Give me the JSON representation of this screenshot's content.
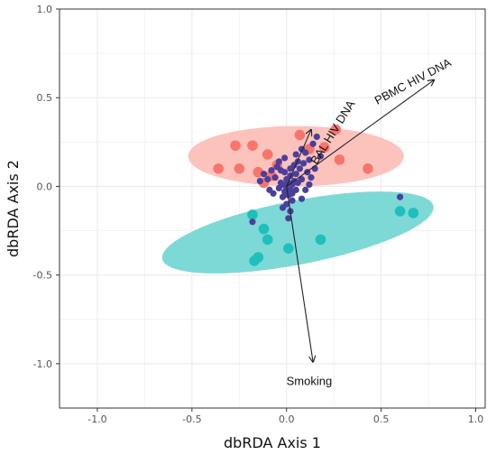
{
  "chart_data": {
    "type": "scatter",
    "xlabel": "dbRDA Axis 1",
    "ylabel": "dbRDA Axis 2",
    "xlim": [
      -1.2,
      1.05
    ],
    "ylim": [
      -1.25,
      1.0
    ],
    "x_ticks": [
      -1.0,
      -0.5,
      0.0,
      0.5,
      1.0
    ],
    "x_tick_labels": [
      "-1.0",
      "-0.5",
      "0.0",
      "0.5",
      "1.0"
    ],
    "y_ticks": [
      -1.0,
      -0.5,
      0.0,
      0.5,
      1.0
    ],
    "y_tick_labels": [
      "-1.0",
      "-0.5",
      "0.0",
      "0.5",
      "1.0"
    ],
    "grid": true,
    "colors": {
      "group_red": "#f7756d",
      "group_red_ellipse": "#fcc3bd",
      "group_teal": "#1fbfbc",
      "group_teal_ellipse": "#7dd9d6",
      "dense_points": "#4a3f9c",
      "arrow": "#222222",
      "grid": "#ebebeb",
      "panel_border": "#333333"
    },
    "ellipses": [
      {
        "group": "red",
        "cx": 0.05,
        "cy": 0.17,
        "rx": 0.57,
        "ry": 0.17,
        "angle_deg": 0
      },
      {
        "group": "teal",
        "cx": 0.06,
        "cy": -0.26,
        "rx": 0.73,
        "ry": 0.18,
        "angle_deg": 11
      }
    ],
    "series": [
      {
        "group": "red",
        "points": [
          [
            -0.27,
            0.23
          ],
          [
            -0.18,
            0.23
          ],
          [
            -0.36,
            0.1
          ],
          [
            -0.25,
            0.1
          ],
          [
            -0.1,
            0.18
          ],
          [
            -0.15,
            0.08
          ],
          [
            -0.08,
            0.06
          ],
          [
            -0.05,
            0.12
          ],
          [
            0.07,
            0.29
          ],
          [
            0.2,
            0.22
          ],
          [
            0.26,
            0.32
          ],
          [
            0.12,
            0.21
          ],
          [
            0.28,
            0.15
          ],
          [
            0.43,
            0.1
          ],
          [
            -0.12,
            0.02
          ]
        ]
      },
      {
        "group": "teal",
        "points": [
          [
            -0.18,
            -0.16
          ],
          [
            -0.12,
            -0.24
          ],
          [
            -0.15,
            -0.4
          ],
          [
            -0.17,
            -0.42
          ],
          [
            0.01,
            -0.35
          ],
          [
            0.18,
            -0.3
          ],
          [
            0.6,
            -0.14
          ],
          [
            0.67,
            -0.15
          ],
          [
            -0.1,
            -0.3
          ]
        ]
      },
      {
        "group": "dense",
        "points": [
          [
            -0.02,
            0.01
          ],
          [
            0.0,
            -0.01
          ],
          [
            0.01,
            0.02
          ],
          [
            -0.01,
            -0.03
          ],
          [
            0.02,
            -0.02
          ],
          [
            0.03,
            0.01
          ],
          [
            -0.03,
            0.02
          ],
          [
            0.0,
            0.04
          ],
          [
            0.01,
            -0.05
          ],
          [
            -0.02,
            -0.06
          ],
          [
            0.03,
            -0.04
          ],
          [
            0.04,
            0.03
          ],
          [
            -0.04,
            -0.01
          ],
          [
            0.02,
            0.06
          ],
          [
            -0.01,
            0.08
          ],
          [
            0.05,
            0.07
          ],
          [
            0.07,
            0.1
          ],
          [
            0.09,
            0.13
          ],
          [
            0.1,
            0.19
          ],
          [
            0.12,
            0.15
          ],
          [
            0.14,
            0.24
          ],
          [
            0.16,
            0.28
          ],
          [
            -0.06,
            0.05
          ],
          [
            -0.08,
            0.09
          ],
          [
            -0.05,
            0.11
          ],
          [
            -0.1,
            0.04
          ],
          [
            -0.12,
            0.07
          ],
          [
            -0.14,
            0.03
          ],
          [
            0.06,
            0.02
          ],
          [
            0.08,
            0.04
          ],
          [
            0.05,
            -0.02
          ],
          [
            0.03,
            -0.08
          ],
          [
            0.0,
            -0.1
          ],
          [
            -0.02,
            -0.12
          ],
          [
            0.02,
            -0.14
          ],
          [
            0.01,
            -0.18
          ],
          [
            0.1,
            -0.02
          ],
          [
            0.12,
            0.01
          ],
          [
            0.08,
            -0.07
          ],
          [
            -0.07,
            -0.04
          ],
          [
            -0.09,
            -0.02
          ],
          [
            0.06,
            0.14
          ],
          [
            0.04,
            0.12
          ],
          [
            -0.03,
            0.09
          ],
          [
            0.11,
            0.08
          ],
          [
            0.13,
            0.05
          ],
          [
            0.05,
            0.18
          ],
          [
            0.08,
            0.21
          ],
          [
            -0.04,
            0.14
          ],
          [
            -0.18,
            -0.2
          ],
          [
            0.6,
            -0.06
          ],
          [
            0.15,
            0.1
          ],
          [
            0.02,
            0.1
          ],
          [
            -0.01,
            0.16
          ],
          [
            0.18,
            0.17
          ]
        ]
      }
    ],
    "arrows": [
      {
        "label": "BAL HIV DNA",
        "from": [
          0.0,
          0.0
        ],
        "to": [
          0.13,
          0.32
        ]
      },
      {
        "label": "PBMC  HIV DNA",
        "from": [
          0.0,
          0.0
        ],
        "to": [
          0.78,
          0.6
        ]
      },
      {
        "label": "Smoking",
        "from": [
          0.0,
          0.0
        ],
        "to": [
          0.14,
          -0.99
        ]
      }
    ]
  }
}
